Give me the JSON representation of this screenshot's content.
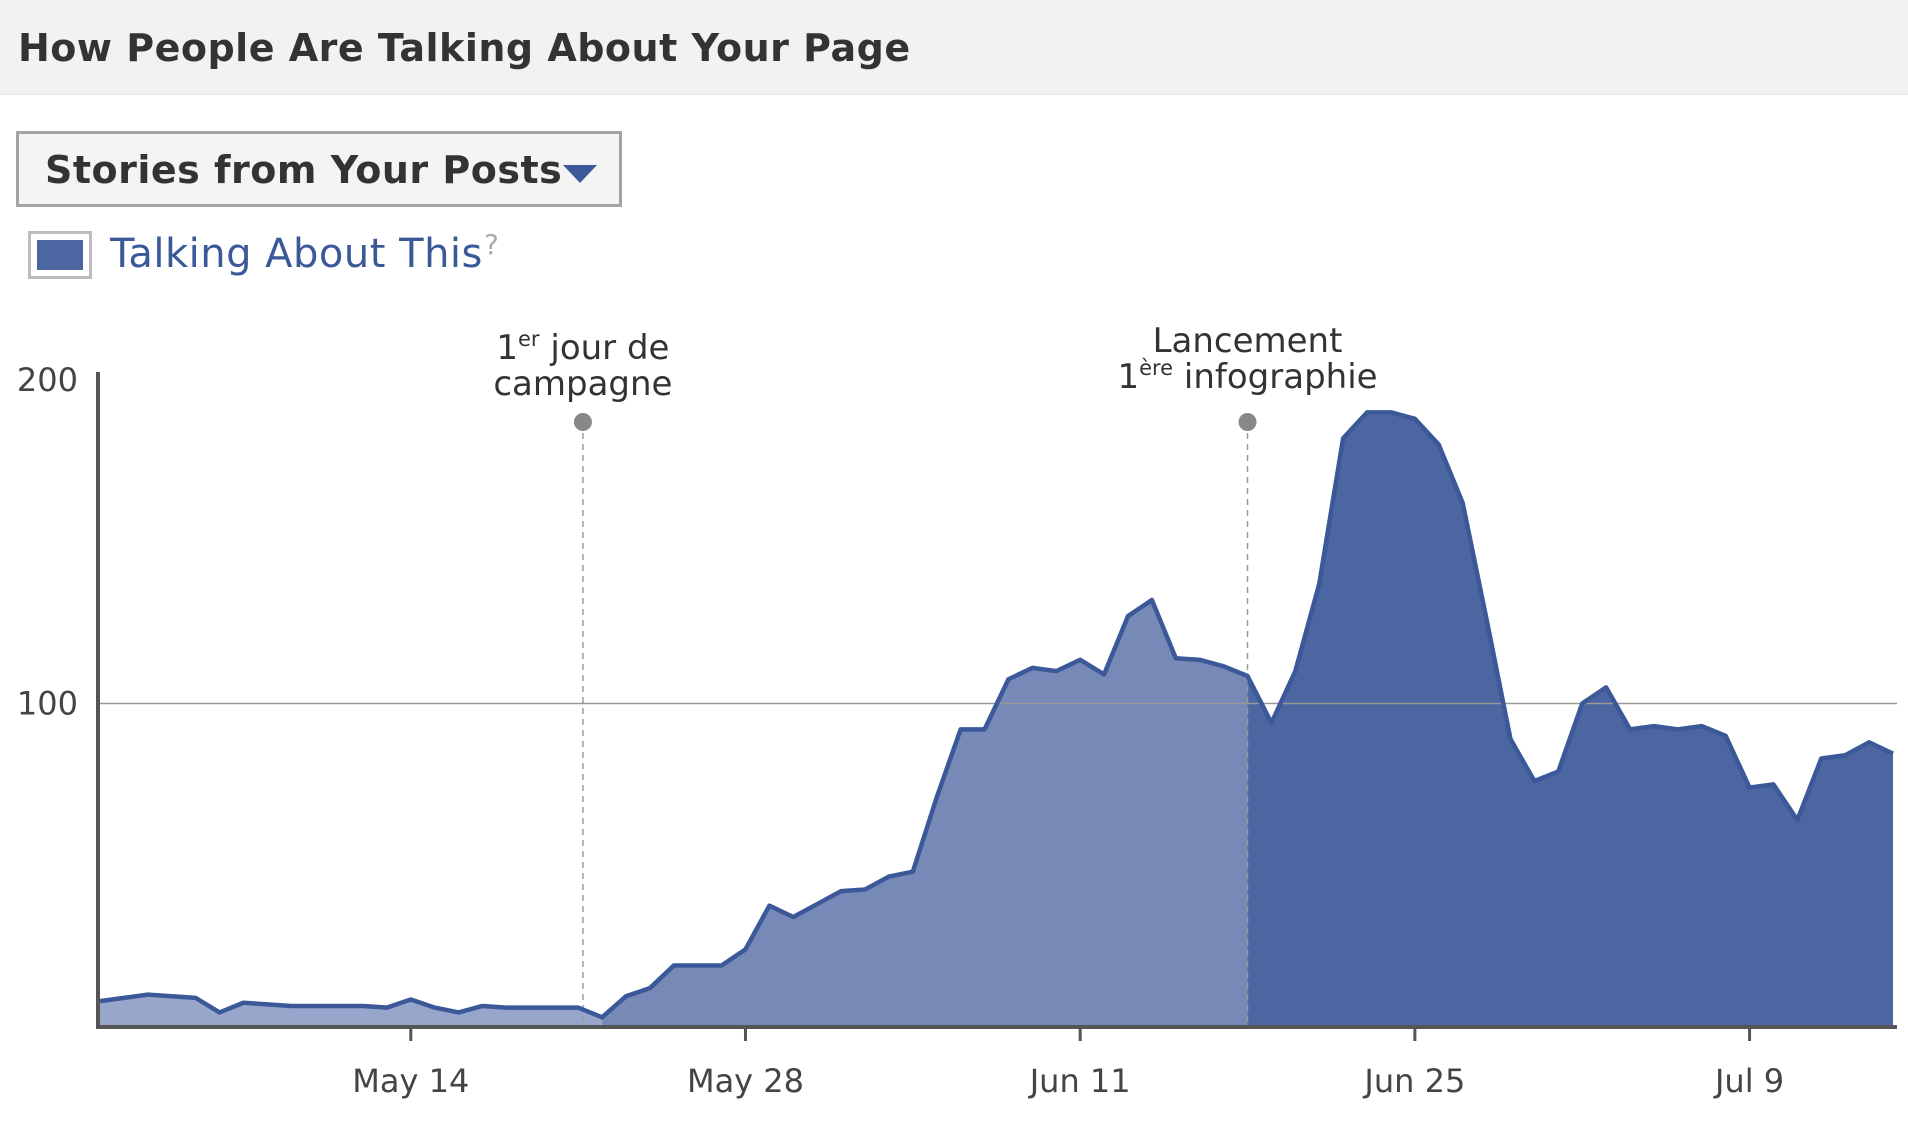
{
  "header": {
    "title": "How People Are Talking About Your Page"
  },
  "dropdown": {
    "selected": "Stories from Your Posts"
  },
  "legend": {
    "label": "Talking About This",
    "help": "?"
  },
  "colors": {
    "series_dark": "#4b66a0",
    "series_mid": "#7789b6",
    "series_light": "#98a6cb",
    "line": "#3b5998",
    "axis": "#555555",
    "gridline": "#999999",
    "marker": "#888888"
  },
  "chart_data": {
    "type": "area",
    "ylim": [
      0,
      200
    ],
    "yticks": [
      100,
      200
    ],
    "ytick_labels": [
      "100",
      "200"
    ],
    "xticks": [
      {
        "day": 13,
        "label": "May 14"
      },
      {
        "day": 27,
        "label": "May 28"
      },
      {
        "day": 41,
        "label": "Jun 11"
      },
      {
        "day": 55,
        "label": "Jun 25"
      },
      {
        "day": 69,
        "label": "Jul 9"
      }
    ],
    "x_note": "day index 0 = May 1",
    "series": [
      {
        "values": [
          8,
          9,
          10,
          9.5,
          9,
          4.5,
          7.5,
          7,
          6.5,
          6.5,
          6.5,
          6.5,
          6,
          8.5,
          6,
          4.5,
          6.5,
          6,
          6,
          6,
          6,
          3,
          9.5,
          12,
          19,
          19,
          19,
          24,
          37.5,
          34,
          38,
          42,
          42.5,
          46.5,
          48,
          71,
          92,
          92,
          107.5,
          111,
          110,
          113.5,
          109,
          127,
          132,
          114,
          113.5,
          111.5,
          108.5,
          94,
          110,
          137,
          182,
          190,
          190,
          188,
          180,
          162,
          126,
          89,
          76,
          79,
          100,
          105,
          92,
          93,
          92,
          93,
          90,
          74,
          75,
          64,
          83,
          84,
          88,
          84.5
        ]
      }
    ],
    "segments": [
      {
        "from": 0,
        "to": 21,
        "shade": "light"
      },
      {
        "from": 21,
        "to": 48,
        "shade": "mid"
      },
      {
        "from": 48,
        "to": 75,
        "shade": "dark"
      }
    ],
    "annotations": [
      {
        "day": 20.2,
        "base1": "1",
        "sup1": "er",
        "rest1": " jour de",
        "line2": "campagne"
      },
      {
        "day": 48,
        "line1": "Lancement",
        "base2": "1",
        "sup2": "ère",
        "rest2": " infographie"
      }
    ],
    "grid": "horizontal at 100",
    "legend_position": "top-left"
  }
}
